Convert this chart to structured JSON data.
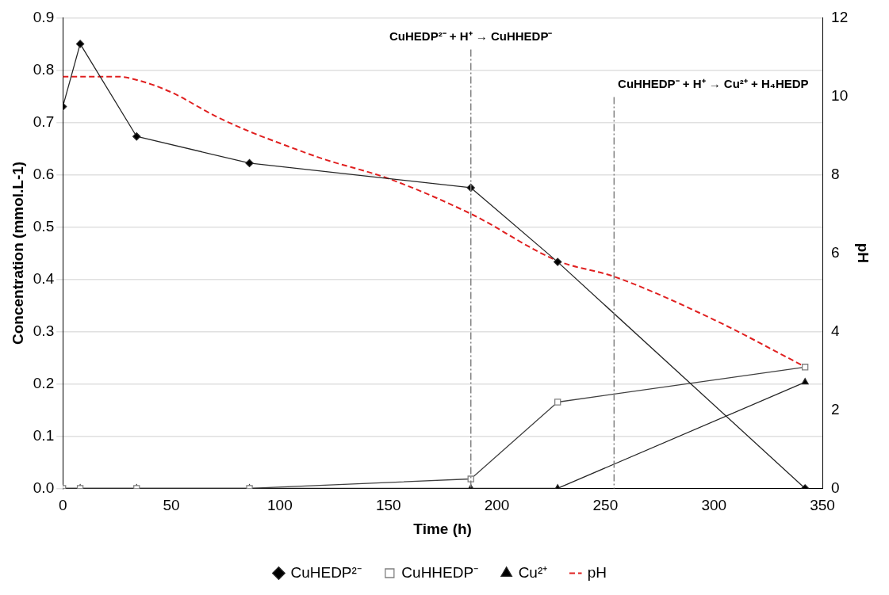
{
  "chart_data": {
    "type": "line",
    "xlabel": "Time (h)",
    "ylabel": "Concentration (mmol.L-1)",
    "y2label": "pH",
    "xlim": [
      0,
      350
    ],
    "xticks": [
      0,
      50,
      100,
      150,
      200,
      250,
      300,
      350
    ],
    "ylim": [
      0,
      0.9
    ],
    "yticks": [
      {
        "value": 0,
        "label": "0.0"
      },
      {
        "value": 0.1,
        "label": "0.1"
      },
      {
        "value": 0.2,
        "label": "0.2"
      },
      {
        "value": 0.3,
        "label": "0.3"
      },
      {
        "value": 0.4,
        "label": "0.4"
      },
      {
        "value": 0.5,
        "label": "0.5"
      },
      {
        "value": 0.6,
        "label": "0.6"
      },
      {
        "value": 0.7,
        "label": "0.7"
      },
      {
        "value": 0.8,
        "label": "0.8"
      },
      {
        "value": 0.9,
        "label": "0.9"
      }
    ],
    "y2lim": [
      0,
      12
    ],
    "y2ticks": [
      0,
      2,
      4,
      6,
      8,
      10,
      12
    ],
    "grid": "y",
    "legend": "bottom",
    "series": [
      {
        "name": "CuHEDP²⁻",
        "color": "#262626",
        "marker": "diamond",
        "x": [
          0,
          8,
          34,
          86,
          188,
          228,
          342
        ],
        "values": [
          0.73,
          0.85,
          0.673,
          0.622,
          0.575,
          0.433,
          0
        ]
      },
      {
        "name": "CuHHEDP⁻",
        "color": "#404040",
        "marker": "square",
        "x": [
          0,
          8,
          34,
          86,
          188,
          228,
          342
        ],
        "values": [
          0,
          0,
          0,
          0,
          0.018,
          0.165,
          0.232
        ]
      },
      {
        "name": "Cu²⁺",
        "color": "#262626",
        "marker": "triangle",
        "x": [
          0,
          8,
          34,
          86,
          188,
          228,
          342
        ],
        "values": [
          0,
          0,
          0,
          0,
          0,
          0,
          0.203
        ]
      },
      {
        "name": "pH",
        "color": "#e02020",
        "marker": "none",
        "line_style": "dashed",
        "axis": "y2",
        "x": [
          0,
          15,
          25,
          35,
          50,
          70,
          86,
          100,
          120,
          150,
          188,
          228,
          254,
          300,
          342
        ],
        "values": [
          10.5,
          10.5,
          10.5,
          10.4,
          10.1,
          9.5,
          9.1,
          8.8,
          8.4,
          7.9,
          7.0,
          5.8,
          5.4,
          4.3,
          3.1
        ]
      }
    ],
    "ref_lines": [
      {
        "axis": "x",
        "value": 188,
        "label": "CuHEDP²⁻ + H⁺ → CuHHEDP⁻",
        "color": "#808080",
        "line_style": "dashed"
      },
      {
        "axis": "x",
        "value": 254,
        "label": "CuHHEDP⁻ + H⁺ → Cu²⁺ + H₄HEDP",
        "color": "#808080",
        "line_style": "dashed"
      }
    ]
  }
}
